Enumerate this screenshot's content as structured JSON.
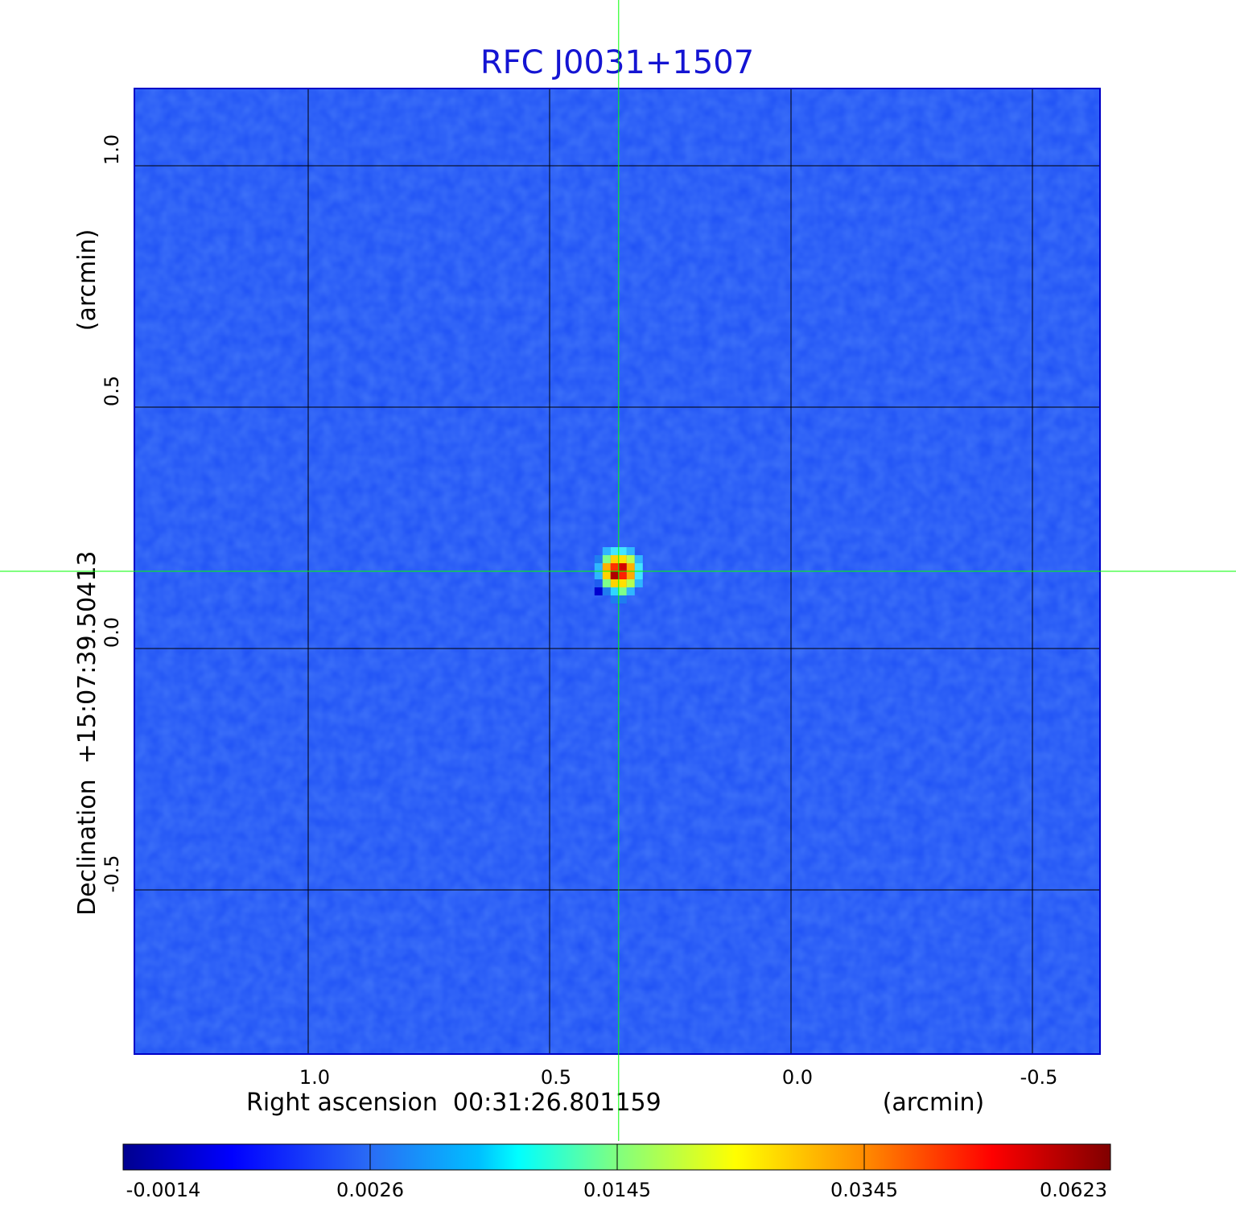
{
  "chart_data": {
    "type": "heatmap",
    "title": "RFC J0031+1507",
    "xlabel": "Right ascension  00:31:26.801159",
    "xunit": "(arcmin)",
    "ylabel": "Declination  +15:07:39.50413",
    "yunit": "(arcmin)",
    "xlim": [
      1.36,
      -0.64
    ],
    "ylim": [
      -0.84,
      1.16
    ],
    "x_ticks": [
      {
        "value": 1.0,
        "label": "1.0"
      },
      {
        "value": 0.5,
        "label": "0.5"
      },
      {
        "value": 0.0,
        "label": "0.0"
      },
      {
        "value": -0.5,
        "label": "-0.5"
      }
    ],
    "y_ticks": [
      {
        "value": 1.0,
        "label": "1.0"
      },
      {
        "value": 0.5,
        "label": "0.5"
      },
      {
        "value": 0.0,
        "label": "0.0"
      },
      {
        "value": -0.5,
        "label": "-0.5"
      }
    ],
    "grid": true,
    "crosshair": {
      "x": 0.357,
      "y": 0.16,
      "color": "#00ff00"
    },
    "colormap": "jet",
    "colorbar": {
      "position": "bottom",
      "ticks": [
        "-0.0014",
        "0.0026",
        "0.0145",
        "0.0345",
        "0.0623"
      ]
    },
    "source": {
      "x": 0.357,
      "y": 0.16,
      "peak": 0.0623,
      "background": 0.0
    },
    "colors": {
      "title": "#1414d2",
      "frame": "#0000c8",
      "grid": "#000000",
      "background_map": "#1e50f5"
    }
  }
}
